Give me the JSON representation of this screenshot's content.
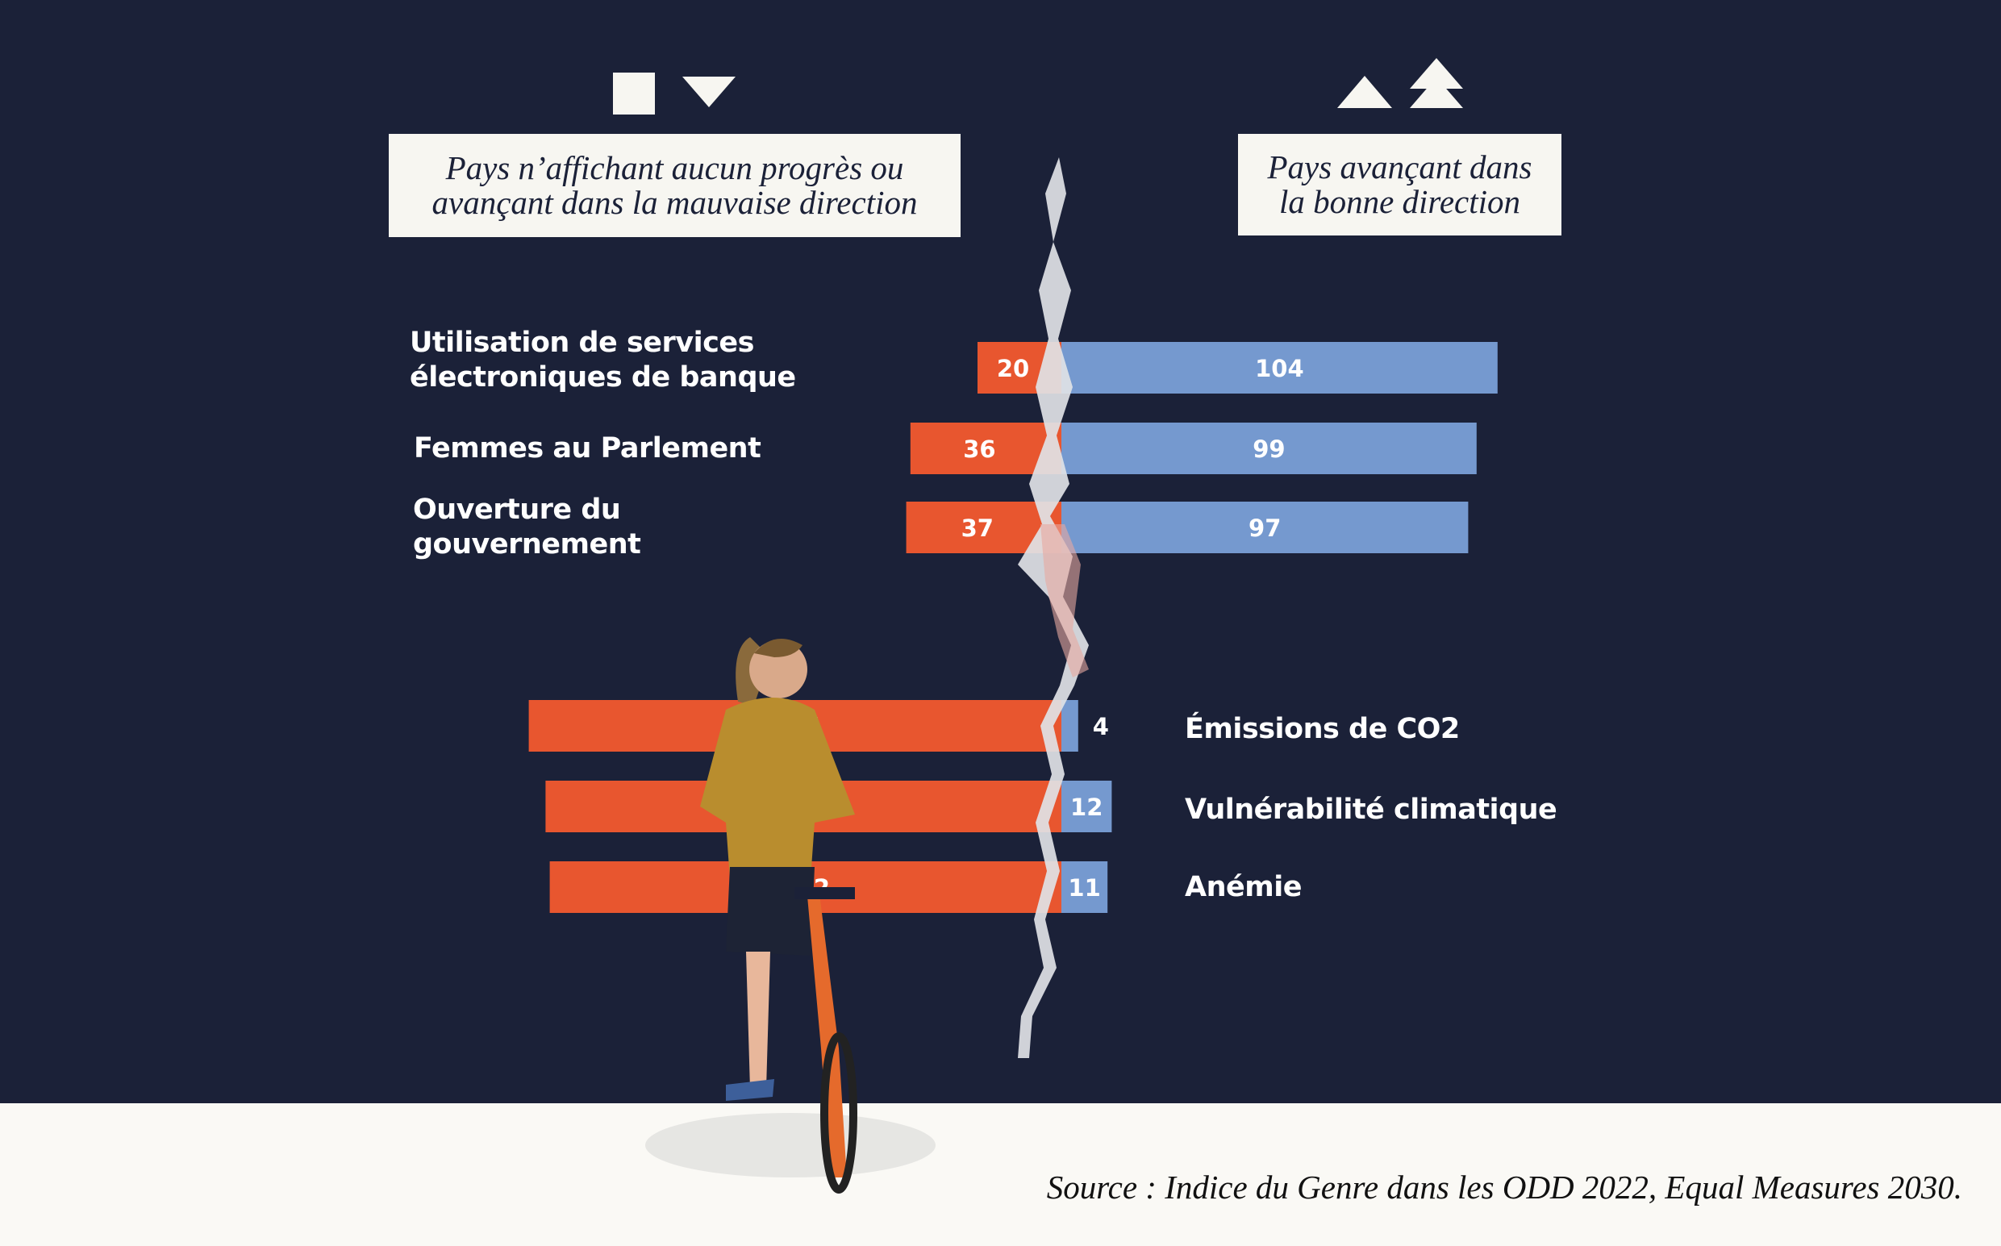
{
  "legend": {
    "left": {
      "line1": "Pays n’affichant aucun progrès ou",
      "line2": "avançant dans la mauvaise direction",
      "icons": [
        "square-icon",
        "triangle-down-icon"
      ]
    },
    "right": {
      "line1": "Pays avançant dans",
      "line2": "la bonne direction",
      "icons": [
        "triangle-up-icon",
        "double-triangle-up-icon"
      ]
    }
  },
  "labels": {
    "top": [
      {
        "line1": "Utilisation de services",
        "line2": "électroniques de banque"
      },
      {
        "line1": "Femmes au Parlement",
        "line2": ""
      },
      {
        "line1": "Ouverture du",
        "line2": "gouvernement"
      }
    ],
    "bottom": [
      {
        "line1": "Émissions de CO2"
      },
      {
        "line1": "Vulnérabilité climatique"
      },
      {
        "line1": "Anémie"
      }
    ]
  },
  "source": "Source : Indice du Genre dans les ODD 2022, Equal Measures 2030.",
  "colors": {
    "background": "#1b2138",
    "negative": "#e8562f",
    "positive": "#7599cf",
    "footer": "#faf9f5"
  },
  "chart_data": {
    "type": "bar",
    "orientation": "horizontal-diverging",
    "series": [
      {
        "name": "Pays n’affichant aucun progrès ou avançant dans la mauvaise direction",
        "color": "#e8562f",
        "values": [
          20,
          36,
          37,
          127,
          123,
          122
        ]
      },
      {
        "name": "Pays avançant dans la bonne direction",
        "color": "#7599cf",
        "values": [
          104,
          99,
          97,
          4,
          12,
          11
        ]
      }
    ],
    "categories": [
      "Utilisation de services électroniques de banque",
      "Femmes au Parlement",
      "Ouverture du gouvernement",
      "Émissions de CO2",
      "Vulnérabilité climatique",
      "Anémie"
    ]
  }
}
